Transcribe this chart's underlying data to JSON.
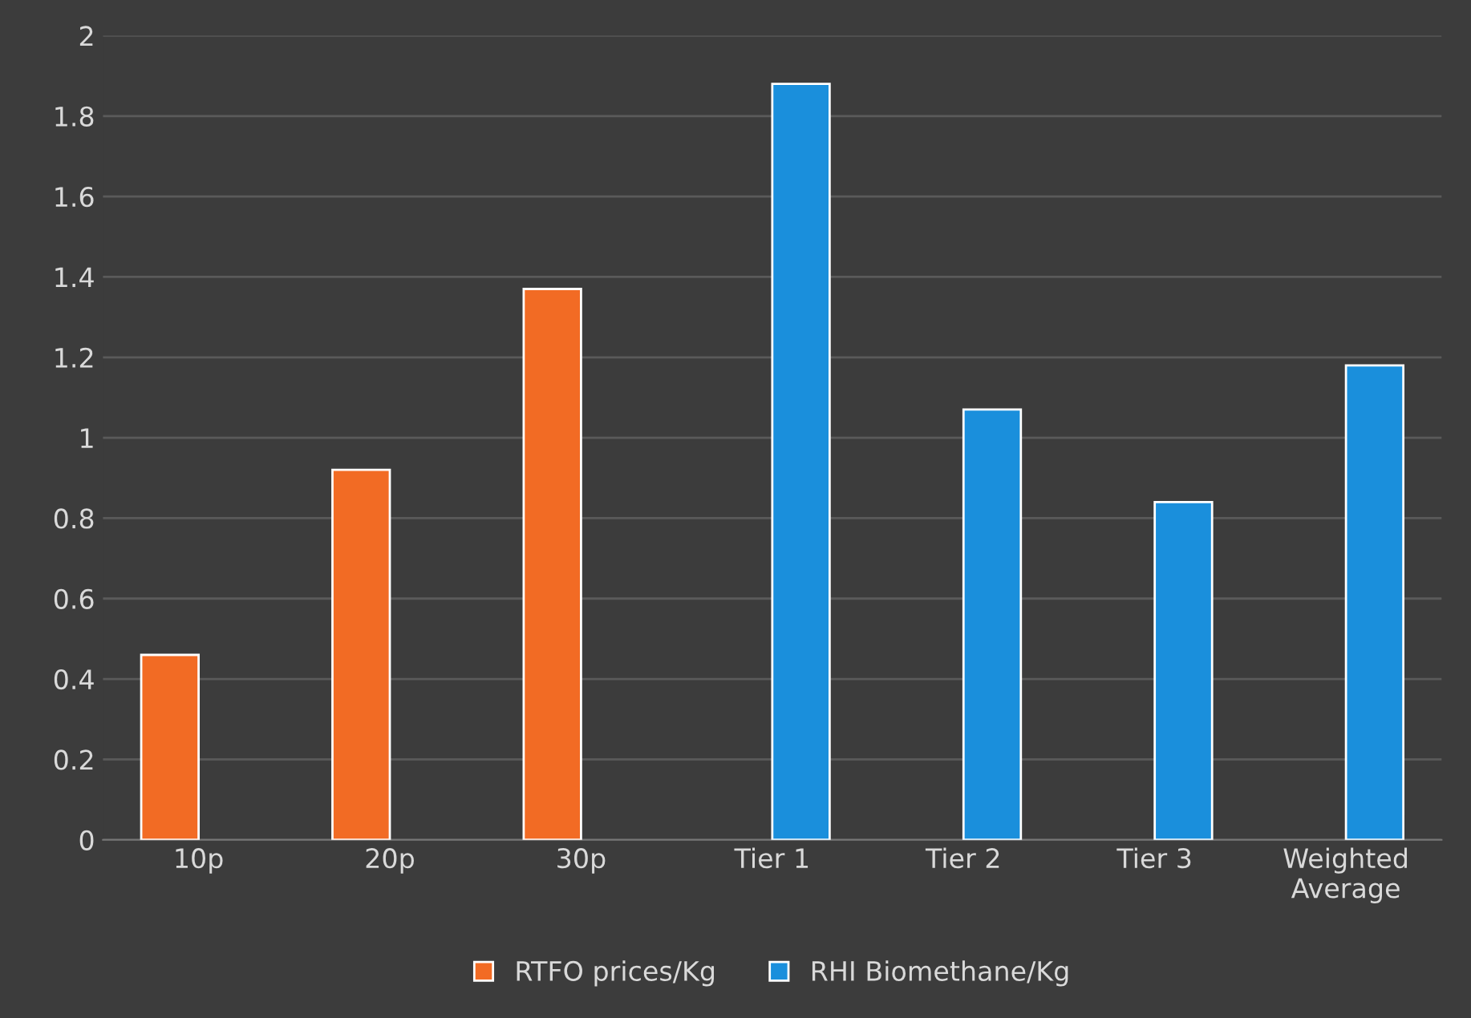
{
  "chart_data": {
    "type": "bar",
    "categories": [
      "10p",
      "20p",
      "30p",
      "Tier 1",
      "Tier 2",
      "Tier 3",
      "Weighted\nAverage"
    ],
    "series": [
      {
        "name": "RTFO prices/Kg",
        "color": "#f26b24",
        "values": [
          0.46,
          0.92,
          1.37,
          null,
          null,
          null,
          null
        ]
      },
      {
        "name": "RHI Biomethane/Kg",
        "color": "#1a8fdc",
        "values": [
          null,
          null,
          null,
          1.88,
          1.07,
          0.84,
          1.18
        ]
      }
    ],
    "ylim": [
      0,
      2
    ],
    "yticks": [
      0,
      0.2,
      0.4,
      0.6,
      0.8,
      1,
      1.2,
      1.4,
      1.6,
      1.8,
      2
    ],
    "grid": "y",
    "legend": "bottom"
  }
}
